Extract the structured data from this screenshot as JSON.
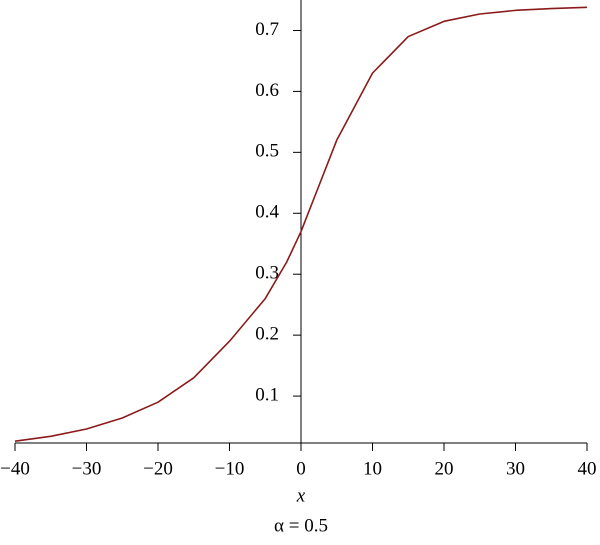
{
  "chart_data": {
    "type": "line",
    "x_label": "x",
    "caption": "α = 0.5",
    "x": [
      -40,
      -35,
      -30,
      -25,
      -20,
      -15,
      -10,
      -5,
      -2,
      0,
      2,
      5,
      10,
      15,
      20,
      25,
      30,
      35,
      40
    ],
    "series": [
      {
        "color": "#8b1a1a",
        "values": [
          0.026,
          0.034,
          0.046,
          0.064,
          0.09,
          0.13,
          0.19,
          0.26,
          0.32,
          0.37,
          0.43,
          0.52,
          0.63,
          0.69,
          0.715,
          0.727,
          0.733,
          0.736,
          0.738
        ]
      }
    ],
    "xlim": [
      -40,
      40
    ],
    "ylim": [
      0.023,
      0.75
    ],
    "xticks": [
      {
        "value": -40,
        "label": "−40"
      },
      {
        "value": -30,
        "label": "−30"
      },
      {
        "value": -20,
        "label": "−20"
      },
      {
        "value": -10,
        "label": "−10"
      },
      0,
      10,
      20,
      30,
      40
    ],
    "yticks": [
      0.1,
      0.2,
      0.3,
      0.4,
      0.5,
      0.6,
      0.7
    ]
  }
}
